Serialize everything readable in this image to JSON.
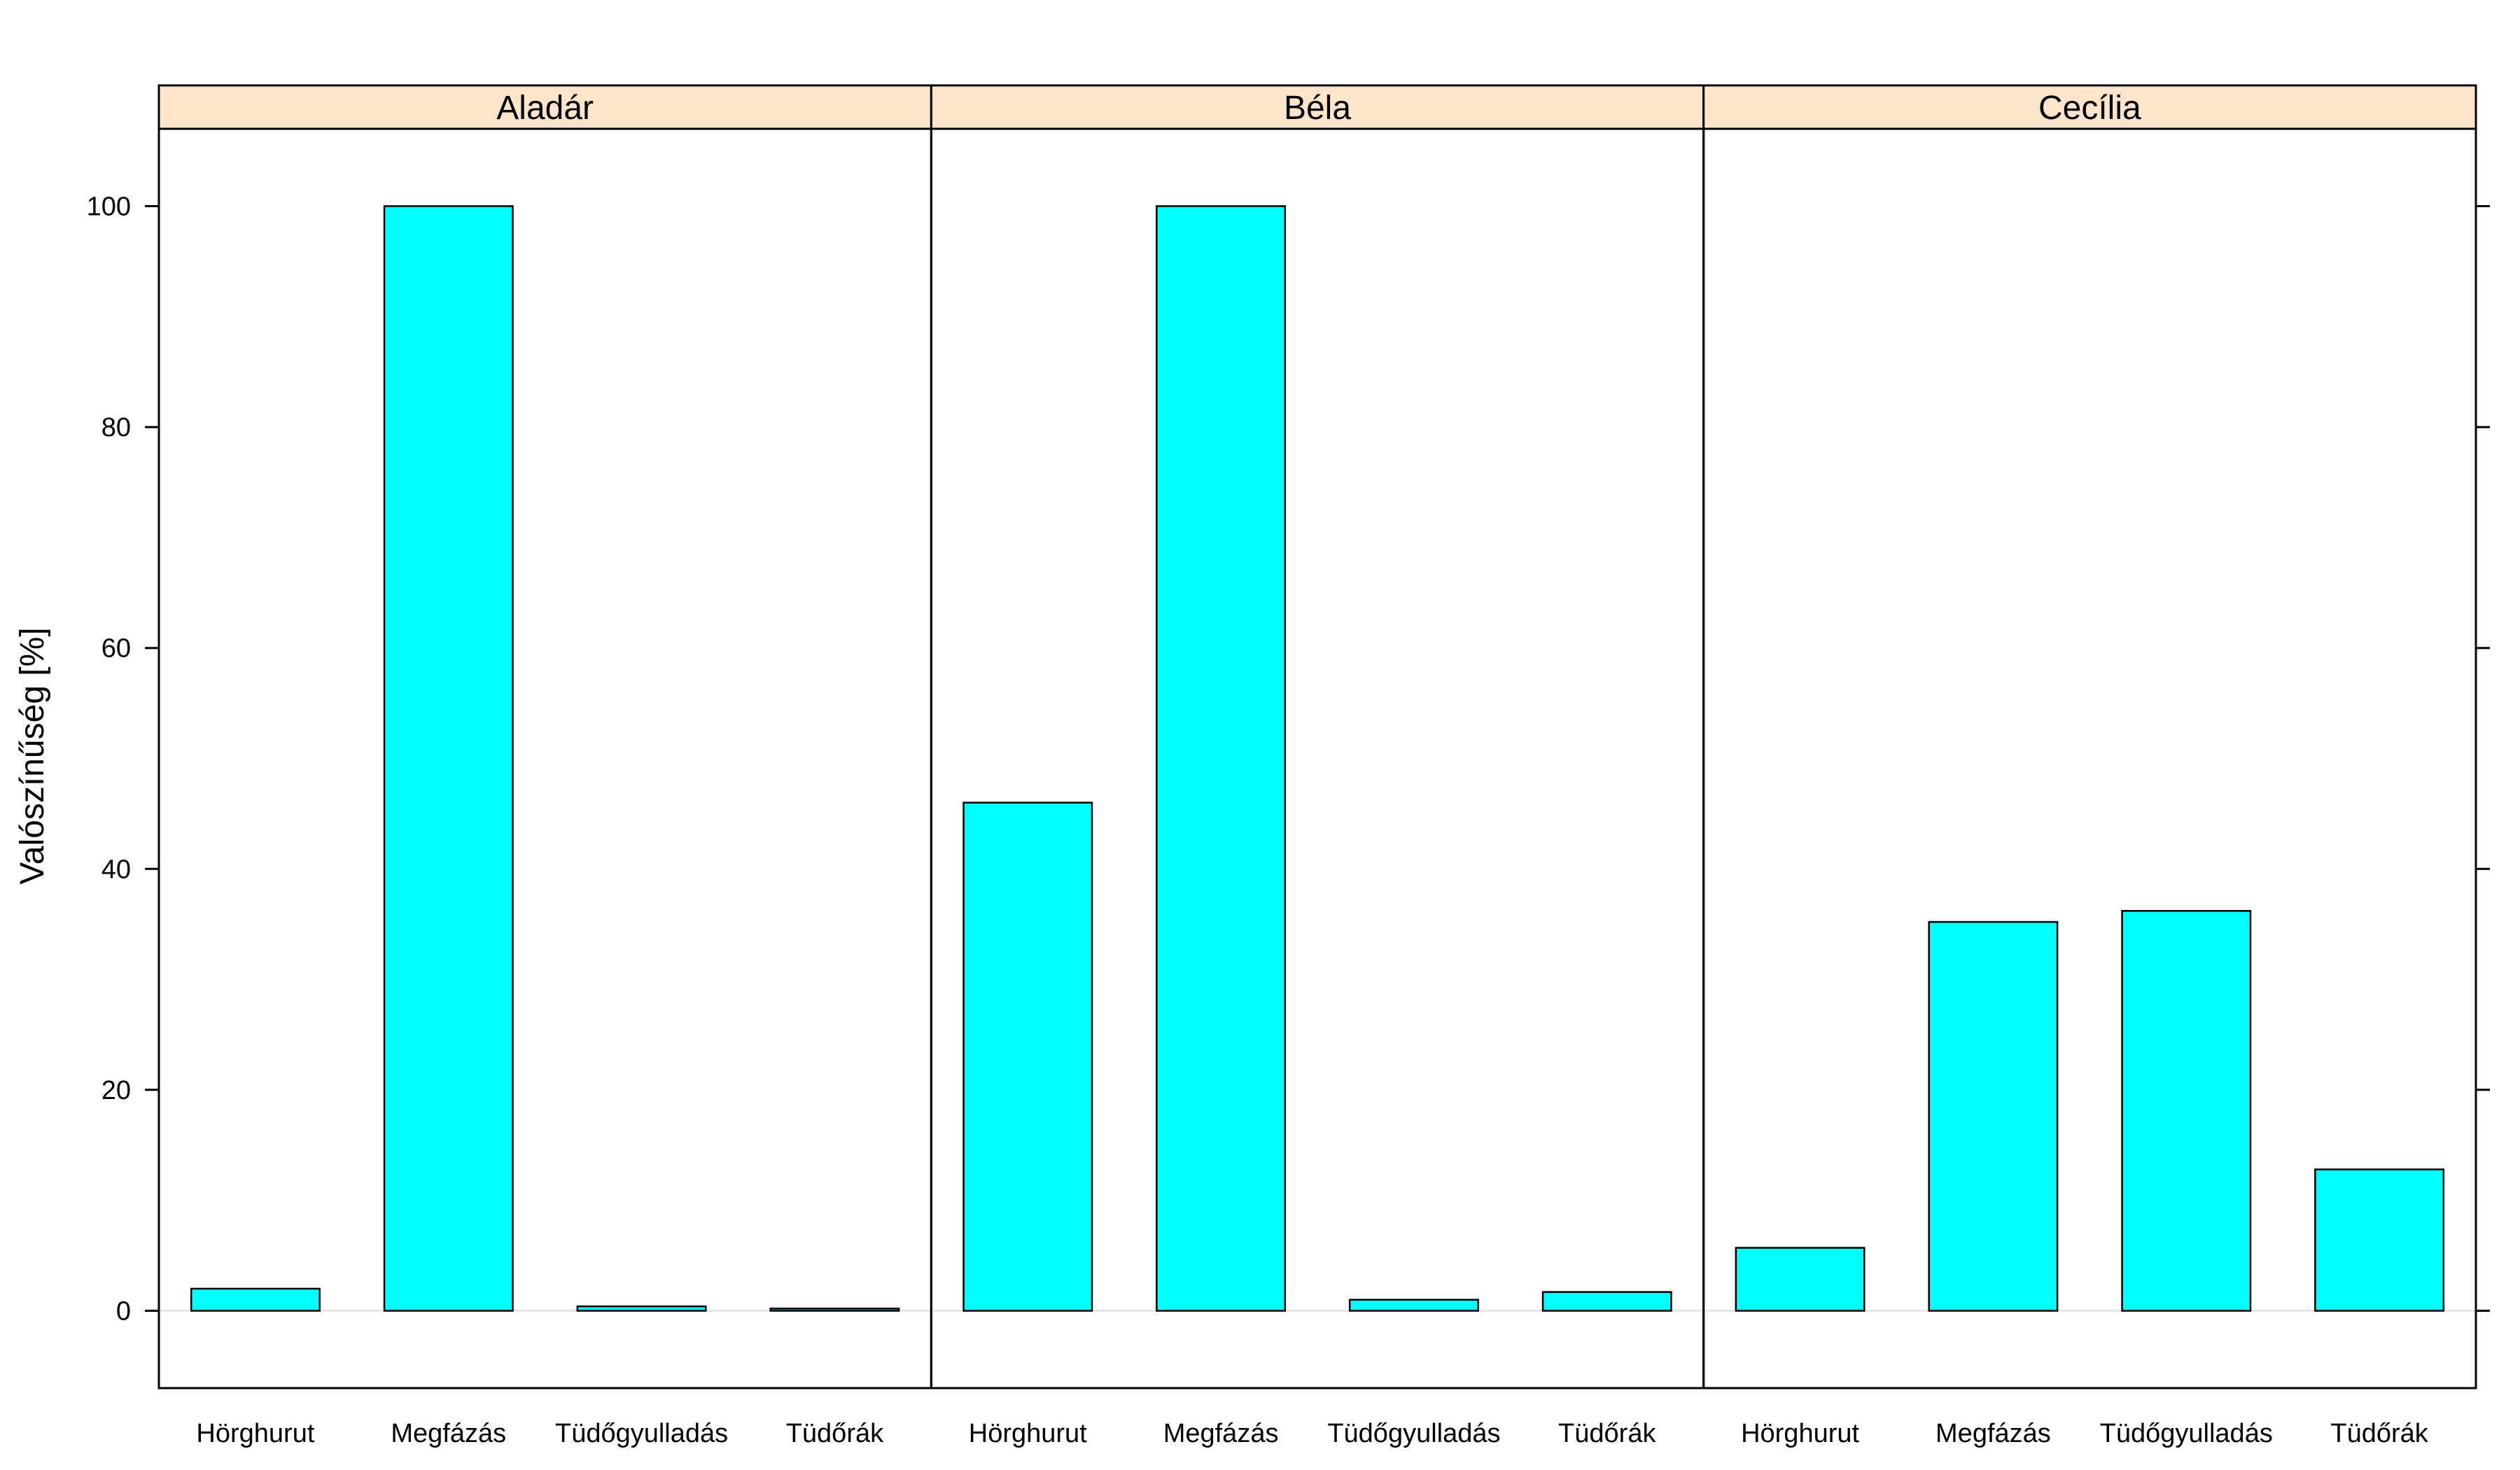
{
  "chart_data": {
    "type": "bar",
    "ylabel": "Valószínűség [%]",
    "ylim": [
      -7,
      107
    ],
    "y_ticks": [
      0,
      20,
      40,
      60,
      80,
      100
    ],
    "categories": [
      "Hörghurut",
      "Megfázás",
      "Tüdőgyulladás",
      "Tüdőrák"
    ],
    "panels": [
      {
        "name": "Aladár",
        "values": [
          2.0,
          100.0,
          0.4,
          0.2
        ]
      },
      {
        "name": "Béla",
        "values": [
          46.0,
          100.0,
          1.0,
          1.7
        ]
      },
      {
        "name": "Cecília",
        "values": [
          5.7,
          35.2,
          36.2,
          12.8
        ]
      }
    ],
    "colors": {
      "bar": "#00FFFF",
      "strip": "#FFE5CC",
      "zero_line": "#E6E6E6"
    },
    "grid": false,
    "legend": "none"
  }
}
